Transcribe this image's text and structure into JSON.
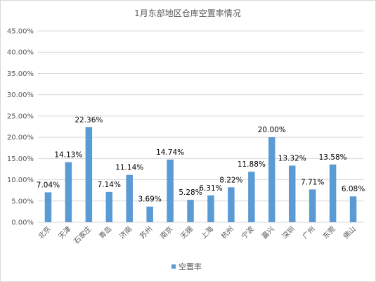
{
  "chart_data": {
    "type": "bar",
    "title": "1月东部地区仓库空置率情况",
    "categories": [
      "北京",
      "天津",
      "石家庄",
      "青岛",
      "济南",
      "苏州",
      "南京",
      "无锡",
      "上海",
      "杭州",
      "宁波",
      "嘉兴",
      "深圳",
      "广州",
      "东莞",
      "佛山"
    ],
    "series": [
      {
        "name": "空置率",
        "values": [
          7.04,
          14.13,
          22.36,
          7.14,
          11.14,
          3.69,
          14.74,
          5.28,
          6.31,
          8.22,
          11.88,
          20.0,
          13.32,
          7.71,
          13.58,
          6.08
        ],
        "labels": [
          "7.04%",
          "14.13%",
          "22.36%",
          "7.14%",
          "11.14%",
          "3.69%",
          "14.74%",
          "5.28%",
          "6.31%",
          "8.22%",
          "11.88%",
          "20.00%",
          "13.32%",
          "7.71%",
          "13.58%",
          "6.08%"
        ]
      }
    ],
    "ylim": [
      0,
      45
    ],
    "yticks": [
      0,
      5,
      10,
      15,
      20,
      25,
      30,
      35,
      40,
      45
    ],
    "ytick_labels": [
      "0.00%",
      "5.00%",
      "10.00%",
      "15.00%",
      "20.00%",
      "25.00%",
      "30.00%",
      "35.00%",
      "40.00%",
      "45.00%"
    ],
    "xlabel": "",
    "ylabel": "",
    "grid": true,
    "legend": "bottom",
    "colors": {
      "bar": "#5b9bd5",
      "grid": "#d9d9d9",
      "text": "#595959"
    }
  }
}
